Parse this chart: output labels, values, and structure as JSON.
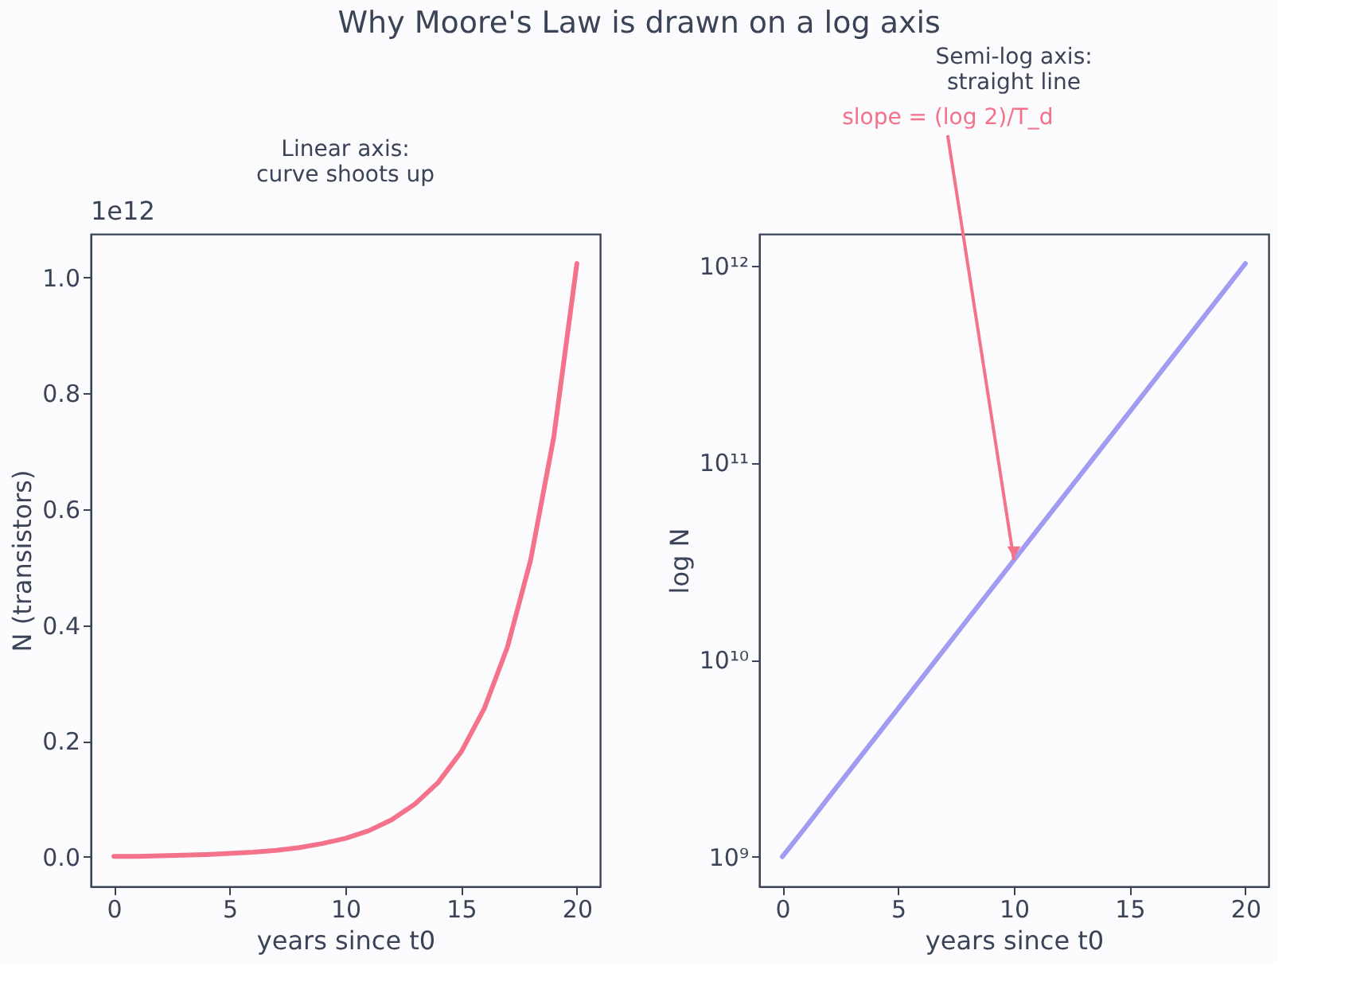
{
  "chart_data": [
    {
      "type": "line",
      "title": "Why Moore's Law is drawn on a log axis",
      "subtitle": "Linear axis:\ncurve shoots up",
      "xlabel": "years since t0",
      "ylabel": "N (transistors)",
      "x": [
        0,
        1,
        2,
        3,
        4,
        5,
        6,
        7,
        8,
        9,
        10,
        11,
        12,
        13,
        14,
        15,
        16,
        17,
        18,
        19,
        20
      ],
      "series": [
        {
          "color": "#f4728a",
          "values": [
            0.001,
            0.001,
            0.002,
            0.003,
            0.004,
            0.006,
            0.008,
            0.011,
            0.016,
            0.023,
            0.032,
            0.045,
            0.064,
            0.091,
            0.128,
            0.181,
            0.256,
            0.362,
            0.512,
            0.724,
            1.024
          ]
        }
      ],
      "xlim": [
        -1,
        21
      ],
      "xticks": [
        0,
        5,
        10,
        15,
        20
      ],
      "ylim": [
        -0.051,
        1.075
      ],
      "yticks": [
        {
          "value": 0,
          "label": "0.0"
        },
        0.2,
        0.4,
        0.6,
        0.8,
        {
          "value": 1,
          "label": "1.0"
        }
      ],
      "annotations": [
        "1e12"
      ],
      "line_style": "solid"
    },
    {
      "type": "line",
      "subtitle": "Semi-log axis:\nstraight line",
      "xlabel": "years since t0",
      "ylabel": "log N",
      "log": "y",
      "x": [
        0,
        1,
        2,
        3,
        4,
        5,
        6,
        7,
        8,
        9,
        10,
        11,
        12,
        13,
        14,
        15,
        16,
        17,
        18,
        19,
        20
      ],
      "series": [
        {
          "color": "#a29bf2",
          "values": [
            1000000000.0,
            1410000000.0,
            2000000000.0,
            2830000000.0,
            4000000000.0,
            5660000000.0,
            8000000000.0,
            11300000000.0,
            16000000000.0,
            22600000000.0,
            32000000000.0,
            45300000000.0,
            64000000000.0,
            90500000000.0,
            128000000000.0,
            181000000000.0,
            256000000000.0,
            362000000000.0,
            512000000000.0,
            724000000000.0,
            1024000000000.0
          ]
        }
      ],
      "xlim": [
        -1,
        21
      ],
      "xticks": [
        0,
        5,
        10,
        15,
        20
      ],
      "ylim": [
        707000000.0,
        1448000000000.0
      ],
      "yticks": [
        {
          "value": 1000000000.0,
          "label": "10⁹"
        },
        {
          "value": 10000000000.0,
          "label": "10¹⁰"
        },
        {
          "value": 100000000000.0,
          "label": "10¹¹"
        },
        {
          "value": 1000000000000.0,
          "label": "10¹²"
        }
      ],
      "annotations": [
        {
          "text": "slope = (log 2)/T_d",
          "x": 10,
          "y": 32000000000.0
        }
      ],
      "line_style": "solid"
    }
  ]
}
